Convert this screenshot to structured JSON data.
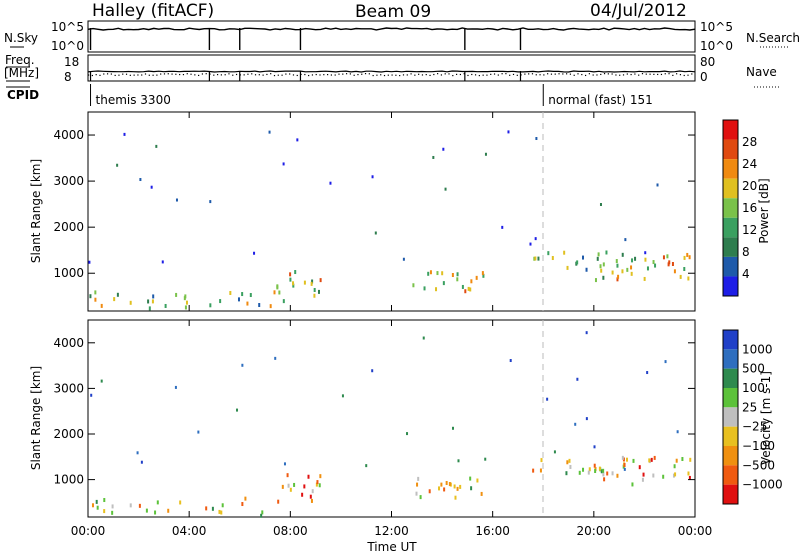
{
  "header": {
    "station": "Halley (fitACF)",
    "beam": "Beam 09",
    "date": "04/Jul/2012"
  },
  "strips": {
    "nsky_label": "N.Sky",
    "nsearch_label": "N.Search",
    "nsky_ticks": [
      "10^5",
      "10^0"
    ],
    "nsearch_ticks": [
      "10^5",
      "10^0"
    ],
    "freq_label_line1": "Freq.",
    "freq_label_line2": "[MHz]",
    "freq_ticks": [
      "18",
      "8"
    ],
    "nave_label": "Nave",
    "nave_ticks": [
      "80",
      "0"
    ],
    "cpid_label": "CPID",
    "cpid_segments": [
      {
        "label": "themis 3300",
        "start_hour": 0.1
      },
      {
        "label": "normal (fast) 151",
        "start_hour": 18.0
      }
    ]
  },
  "colors": {
    "power_scale": [
      "#1e1ee6",
      "#1e5aaa",
      "#2e7d4e",
      "#3aa060",
      "#7ac24a",
      "#e0c020",
      "#f08a10",
      "#e04a10",
      "#e01010"
    ],
    "velocity_scale": [
      "#2040c8",
      "#2e6ebf",
      "#2e8a4e",
      "#5cc23a",
      "#bfbfbf",
      "#e8c020",
      "#f09010",
      "#f05a10",
      "#e01010"
    ]
  },
  "chart_data": [
    {
      "type": "heatmap",
      "name": "power",
      "ylabel": "Slant Range [km]",
      "colorbar_label": "Power [dB]",
      "colorbar_ticks": [
        4,
        8,
        12,
        16,
        20,
        24,
        28
      ],
      "xlim_hours": [
        0,
        24
      ],
      "ylim_km": [
        180,
        4500
      ],
      "yticks": [
        1000,
        2000,
        3000,
        4000
      ],
      "regions": [
        {
          "t0": 0.0,
          "t1": 8.0,
          "r0": 200,
          "r1": 600,
          "level": 0.45,
          "density": 0.35
        },
        {
          "t0": 7.4,
          "t1": 9.2,
          "r0": 500,
          "r1": 1100,
          "level": 0.6,
          "density": 0.55
        },
        {
          "t0": 12.8,
          "t1": 15.6,
          "r0": 600,
          "r1": 1050,
          "level": 0.55,
          "density": 0.6
        },
        {
          "t0": 17.2,
          "t1": 20.5,
          "r0": 1050,
          "r1": 1450,
          "level": 0.35,
          "density": 0.45
        },
        {
          "t0": 20.0,
          "t1": 24.0,
          "r0": 850,
          "r1": 1500,
          "level": 0.55,
          "density": 0.5
        }
      ]
    },
    {
      "type": "heatmap",
      "name": "velocity",
      "ylabel": "Slant Range [km]",
      "colorbar_label": "Velocity [m s-1]",
      "colorbar_ticks": [
        1000,
        500,
        100,
        25,
        -25,
        -100,
        -500,
        -1000
      ],
      "xlim_hours": [
        0,
        24
      ],
      "ylim_km": [
        180,
        4500
      ],
      "yticks": [
        1000,
        2000,
        3000,
        4000
      ],
      "xticks": [
        "00:00",
        "04:00",
        "08:00",
        "12:00",
        "16:00",
        "20:00",
        "00:00"
      ],
      "xlabel": "Time UT",
      "regions": [
        {
          "t0": 0.0,
          "t1": 8.0,
          "r0": 200,
          "r1": 600,
          "level": 0.55,
          "density": 0.3
        },
        {
          "t0": 7.4,
          "t1": 9.2,
          "r0": 500,
          "r1": 1100,
          "level": 0.7,
          "density": 0.55
        },
        {
          "t0": 12.8,
          "t1": 15.6,
          "r0": 600,
          "r1": 1050,
          "level": 0.6,
          "density": 0.6
        },
        {
          "t0": 17.2,
          "t1": 20.5,
          "r0": 1050,
          "r1": 1450,
          "level": 0.6,
          "density": 0.45
        },
        {
          "t0": 20.0,
          "t1": 24.0,
          "r0": 850,
          "r1": 1500,
          "level": 0.65,
          "density": 0.5
        }
      ]
    }
  ]
}
